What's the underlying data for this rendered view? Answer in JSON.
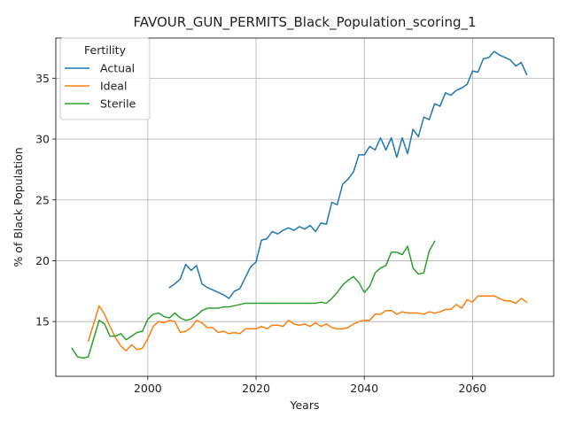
{
  "chart_data": {
    "type": "line",
    "title": "FAVOUR_GUN_PERMITS_Black_Population_scoring_1",
    "xlabel": "Years",
    "ylabel": "% of Black Population",
    "xlim": [
      1983,
      2075
    ],
    "ylim": [
      10.5,
      38.3
    ],
    "xticks": [
      2000,
      2020,
      2040,
      2060
    ],
    "yticks": [
      15,
      20,
      25,
      30,
      35
    ],
    "grid": true,
    "legend": {
      "title": "Fertility",
      "position": "top-left"
    },
    "series": [
      {
        "name": "Actual",
        "color": "#1f77b4",
        "x": [
          2004,
          2005,
          2006,
          2007,
          2008,
          2009,
          2010,
          2011,
          2012,
          2013,
          2014,
          2015,
          2016,
          2017,
          2018,
          2019,
          2020,
          2021,
          2022,
          2023,
          2024,
          2025,
          2026,
          2027,
          2028,
          2029,
          2030,
          2031,
          2032,
          2033,
          2034,
          2035,
          2036,
          2037,
          2038,
          2039,
          2040,
          2041,
          2042,
          2043,
          2044,
          2045,
          2046,
          2047,
          2048,
          2049,
          2050,
          2051,
          2052,
          2053,
          2054,
          2055,
          2056,
          2057,
          2058,
          2059,
          2060,
          2061,
          2062,
          2063,
          2064,
          2065,
          2066,
          2067,
          2068,
          2069,
          2070
        ],
        "y": [
          17.8,
          18.1,
          18.5,
          19.7,
          19.2,
          19.6,
          18.1,
          17.8,
          17.6,
          17.4,
          17.2,
          16.9,
          17.5,
          17.7,
          18.6,
          19.5,
          19.9,
          21.7,
          21.8,
          22.4,
          22.2,
          22.5,
          22.7,
          22.5,
          22.8,
          22.6,
          22.9,
          22.4,
          23.1,
          23.0,
          24.8,
          24.6,
          26.3,
          26.7,
          27.3,
          28.7,
          28.7,
          29.4,
          29.1,
          30.1,
          29.1,
          30.1,
          28.5,
          30.1,
          28.8,
          30.8,
          30.2,
          31.8,
          31.6,
          32.9,
          32.7,
          33.8,
          33.6,
          34.0,
          34.2,
          34.5,
          35.6,
          35.5,
          36.6,
          36.7,
          37.2,
          36.9,
          36.7,
          36.5,
          36.0,
          36.3,
          35.3
        ]
      },
      {
        "name": "Ideal",
        "color": "#ff7f0e",
        "x": [
          1989,
          1990,
          1991,
          1992,
          1993,
          1994,
          1995,
          1996,
          1997,
          1998,
          1999,
          2000,
          2001,
          2002,
          2003,
          2004,
          2005,
          2006,
          2007,
          2008,
          2009,
          2010,
          2011,
          2012,
          2013,
          2014,
          2015,
          2016,
          2017,
          2018,
          2019,
          2020,
          2021,
          2022,
          2023,
          2024,
          2025,
          2026,
          2027,
          2028,
          2029,
          2030,
          2031,
          2032,
          2033,
          2034,
          2035,
          2036,
          2037,
          2038,
          2039,
          2040,
          2041,
          2042,
          2043,
          2044,
          2045,
          2046,
          2047,
          2048,
          2049,
          2050,
          2051,
          2052,
          2053,
          2054,
          2055,
          2056,
          2057,
          2058,
          2059,
          2060,
          2061,
          2062,
          2063,
          2064,
          2065,
          2066,
          2067,
          2068,
          2069,
          2070
        ],
        "y": [
          13.4,
          14.8,
          16.3,
          15.6,
          14.6,
          13.7,
          13.0,
          12.6,
          13.1,
          12.7,
          12.8,
          13.6,
          14.6,
          15.0,
          14.9,
          15.1,
          15.0,
          14.1,
          14.2,
          14.5,
          15.1,
          14.9,
          14.5,
          14.5,
          14.1,
          14.2,
          14.0,
          14.1,
          14.0,
          14.4,
          14.4,
          14.4,
          14.6,
          14.4,
          14.7,
          14.7,
          14.6,
          15.1,
          14.8,
          14.7,
          14.8,
          14.6,
          14.9,
          14.6,
          14.8,
          14.5,
          14.4,
          14.4,
          14.5,
          14.8,
          15.0,
          15.1,
          15.1,
          15.6,
          15.6,
          15.9,
          15.9,
          15.6,
          15.8,
          15.7,
          15.7,
          15.7,
          15.6,
          15.8,
          15.7,
          15.8,
          16.0,
          16.0,
          16.4,
          16.1,
          16.8,
          16.6,
          17.1,
          17.1,
          17.1,
          17.1,
          16.9,
          16.7,
          16.7,
          16.5,
          16.9,
          16.6
        ]
      },
      {
        "name": "Sterile",
        "color": "#2ca02c",
        "x": [
          1986,
          1987,
          1988,
          1989,
          1990,
          1991,
          1992,
          1993,
          1994,
          1995,
          1996,
          1997,
          1998,
          1999,
          2000,
          2001,
          2002,
          2003,
          2004,
          2005,
          2006,
          2007,
          2008,
          2009,
          2010,
          2011,
          2012,
          2013,
          2014,
          2015,
          2016,
          2017,
          2018,
          2019,
          2020,
          2021,
          2022,
          2023,
          2024,
          2025,
          2026,
          2027,
          2028,
          2029,
          2030,
          2031,
          2032,
          2033,
          2034,
          2035,
          2036,
          2037,
          2038,
          2039,
          2040,
          2041,
          2042,
          2043,
          2044,
          2045,
          2046,
          2047,
          2048,
          2049,
          2050,
          2051,
          2052,
          2053
        ],
        "y": [
          12.8,
          12.1,
          12.0,
          12.1,
          13.6,
          15.1,
          14.8,
          13.8,
          13.8,
          14.0,
          13.5,
          13.8,
          14.1,
          14.2,
          15.2,
          15.6,
          15.7,
          15.4,
          15.3,
          15.7,
          15.3,
          15.1,
          15.2,
          15.5,
          15.9,
          16.1,
          16.1,
          16.1,
          16.2,
          16.2,
          16.3,
          16.4,
          16.5,
          16.5,
          16.5,
          16.5,
          16.5,
          16.5,
          16.5,
          16.5,
          16.5,
          16.5,
          16.5,
          16.5,
          16.5,
          16.5,
          16.6,
          16.5,
          16.9,
          17.4,
          18.0,
          18.4,
          18.7,
          18.2,
          17.4,
          17.9,
          19.0,
          19.4,
          19.6,
          20.7,
          20.7,
          20.5,
          21.2,
          19.4,
          18.9,
          19.0,
          20.8,
          21.6
        ]
      }
    ]
  }
}
